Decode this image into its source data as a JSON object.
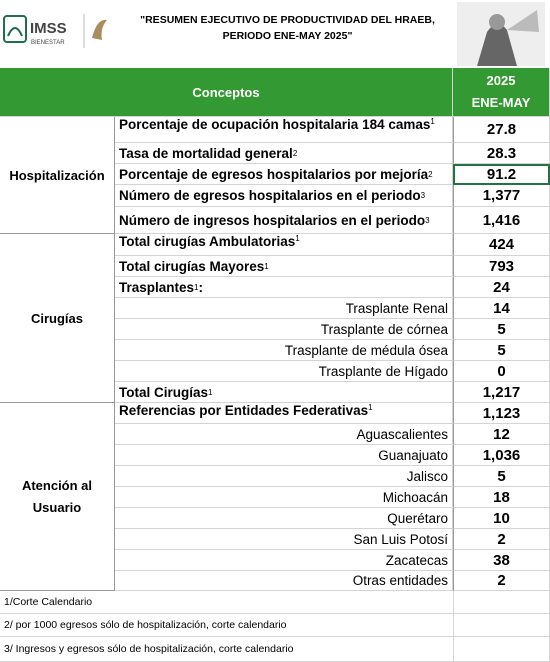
{
  "header": {
    "logo_text": "IMSS",
    "logo_subtext": "BIENESTAR",
    "title_lines": [
      "\"RESUMEN EJECUTIVO DE PRODUCTIVIDAD DEL HRAEB,",
      "PERIODO ENE-MAY  2025\""
    ]
  },
  "table": {
    "columns": {
      "concept": "Conceptos",
      "year": "2025",
      "period": "ENE-MAY"
    },
    "sections": [
      {
        "name": "Hospitalización",
        "rows": [
          {
            "label": "Porcentaje de ocupación hospitalaria 184 camas",
            "sup": "1",
            "value": "27.8"
          },
          {
            "label": "Tasa de mortalidad general",
            "sup": "2",
            "value": "28.3"
          },
          {
            "label": "Porcentaje de egresos hospitalarios por mejoría",
            "sup": "2",
            "value": "91.2",
            "selected": true
          },
          {
            "label": "Número de egresos hospitalarios en el periodo",
            "sup": "3",
            "value": "1,377"
          },
          {
            "label": "Número de ingresos hospitalarios en el periodo",
            "sup": "3",
            "value": "1,416"
          }
        ]
      },
      {
        "name": "Cirugías",
        "rows": [
          {
            "label": "Total cirugías Ambulatorias",
            "sup": "1",
            "value": "424"
          },
          {
            "label": "Total cirugías Mayores",
            "sup": "1",
            "value": "793"
          },
          {
            "label": "Trasplantes",
            "sup": "1",
            "suffix": ":",
            "value": "24"
          },
          {
            "label": "Trasplante Renal",
            "value": "14",
            "sub": true
          },
          {
            "label": "Trasplante de córnea",
            "value": "5",
            "sub": true
          },
          {
            "label": "Trasplante de médula ósea",
            "value": "5",
            "sub": true
          },
          {
            "label": "Trasplante de Hígado",
            "value": "0",
            "sub": true
          },
          {
            "label": "Total Cirugías",
            "sup": "1",
            "value": "1,217"
          }
        ]
      },
      {
        "name": "Atención al Usuario",
        "rows": [
          {
            "label": "Referencias por Entidades Federativas",
            "sup": "1",
            "value": "1,123"
          },
          {
            "label": "Aguascalientes",
            "value": "12",
            "sub": true
          },
          {
            "label": "Guanajuato",
            "value": "1,036",
            "sub": true
          },
          {
            "label": "Jalisco",
            "value": "5",
            "sub": true
          },
          {
            "label": "Michoacán",
            "value": "18",
            "sub": true
          },
          {
            "label": "Querétaro",
            "value": "10",
            "sub": true
          },
          {
            "label": "San Luis Potosí",
            "value": "2",
            "sub": true
          },
          {
            "label": "Zacatecas",
            "value": "38",
            "sub": true
          },
          {
            "label": "Otras entidades",
            "value": "2",
            "sub": true
          }
        ]
      }
    ]
  },
  "footnotes": [
    "1/Corte Calendario",
    "2/ por 1000 egresos sólo de hospitalización, corte calendario",
    "3/ Ingresos y egresos sólo de hospitalización, corte calendario"
  ]
}
